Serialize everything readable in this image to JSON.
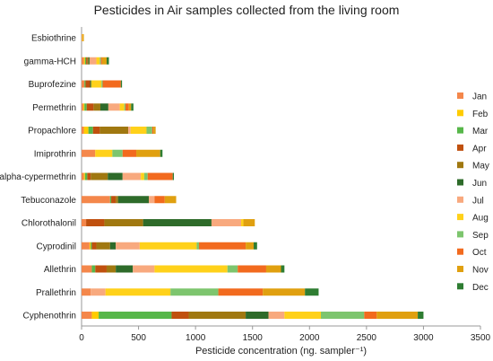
{
  "chart_data": {
    "type": "bar",
    "orientation": "horizontal",
    "stacked": true,
    "title": "Pesticides in Air samples collected from the living room",
    "xlabel": "Pesticide concentration (ng. sampler⁻¹)",
    "ylabel": "",
    "xlim": [
      0,
      3500
    ],
    "xticks": [
      0,
      500,
      1000,
      1500,
      2000,
      2500,
      3000,
      3500
    ],
    "grid": false,
    "legend_position": "right",
    "categories": [
      "Esbiothrine",
      "gamma-HCH",
      "Buprofezine",
      "Permethrin",
      "Propachlore",
      "Imiprothrin",
      "alpha-cypermethrin",
      "Tebuconazole",
      "Chlorothalonil",
      "Cyprodinil",
      "Allethrin",
      "Prallethrin",
      "Cyphenothrin"
    ],
    "series": [
      {
        "name": "Jan",
        "color": "#F4874B",
        "values": [
          5,
          20,
          25,
          15,
          20,
          120,
          20,
          250,
          40,
          70,
          90,
          80,
          90
        ]
      },
      {
        "name": "Feb",
        "color": "#FFCC00",
        "values": [
          5,
          10,
          0,
          10,
          40,
          0,
          10,
          0,
          0,
          10,
          0,
          0,
          60
        ]
      },
      {
        "name": "Mar",
        "color": "#57B74A",
        "values": [
          0,
          10,
          10,
          20,
          40,
          0,
          20,
          10,
          0,
          10,
          30,
          0,
          640
        ]
      },
      {
        "name": "Apr",
        "color": "#C0500E",
        "values": [
          0,
          10,
          40,
          60,
          60,
          0,
          30,
          40,
          160,
          40,
          100,
          0,
          150
        ]
      },
      {
        "name": "May",
        "color": "#A07810",
        "values": [
          0,
          10,
          0,
          60,
          250,
          0,
          150,
          20,
          340,
          120,
          80,
          0,
          500
        ]
      },
      {
        "name": "Jun",
        "color": "#2E6B2A",
        "values": [
          0,
          10,
          10,
          70,
          0,
          0,
          130,
          270,
          600,
          50,
          150,
          0,
          200
        ]
      },
      {
        "name": "Jul",
        "color": "#F8A97E",
        "values": [
          0,
          60,
          0,
          100,
          20,
          0,
          160,
          50,
          260,
          210,
          190,
          130,
          140
        ]
      },
      {
        "name": "Aug",
        "color": "#FFD11A",
        "values": [
          0,
          30,
          90,
          40,
          140,
          150,
          30,
          0,
          20,
          500,
          640,
          570,
          320
        ]
      },
      {
        "name": "Sep",
        "color": "#7DC56E",
        "values": [
          0,
          10,
          10,
          10,
          50,
          90,
          30,
          0,
          0,
          20,
          90,
          420,
          380
        ]
      },
      {
        "name": "Oct",
        "color": "#F26A1E",
        "values": [
          0,
          10,
          160,
          30,
          10,
          120,
          220,
          90,
          0,
          410,
          250,
          390,
          110
        ]
      },
      {
        "name": "Nov",
        "color": "#E0A010",
        "values": [
          10,
          40,
          0,
          20,
          20,
          210,
          0,
          100,
          100,
          70,
          130,
          370,
          360
        ]
      },
      {
        "name": "Dec",
        "color": "#2E7D32",
        "values": [
          0,
          20,
          10,
          20,
          0,
          20,
          10,
          0,
          0,
          30,
          30,
          120,
          50
        ]
      }
    ]
  }
}
